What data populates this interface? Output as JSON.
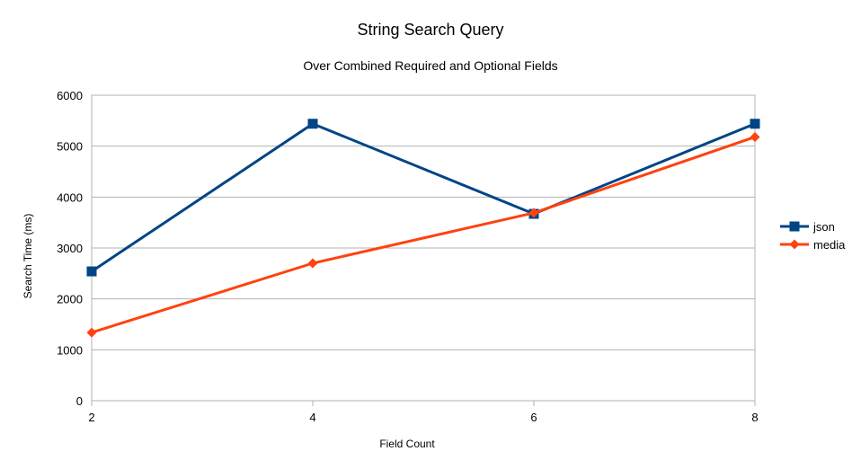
{
  "chart_data": {
    "type": "line",
    "title": "String Search Query",
    "subtitle": "Over Combined Required and Optional Fields",
    "xlabel": "Field Count",
    "ylabel": "Search Time (ms)",
    "x": [
      2,
      4,
      6,
      8
    ],
    "x_ticks": [
      "2",
      "4",
      "6",
      "8"
    ],
    "ylim": [
      0,
      6000
    ],
    "y_ticks": [
      "0",
      "1000",
      "2000",
      "3000",
      "4000",
      "5000",
      "6000"
    ],
    "grid": true,
    "legend_position": "right",
    "series": [
      {
        "name": "json",
        "values": [
          2540,
          5440,
          3670,
          5440
        ],
        "color": "#004586",
        "marker": "square"
      },
      {
        "name": "media",
        "values": [
          1340,
          2700,
          3690,
          5180
        ],
        "color": "#ff420e",
        "marker": "diamond"
      }
    ]
  }
}
